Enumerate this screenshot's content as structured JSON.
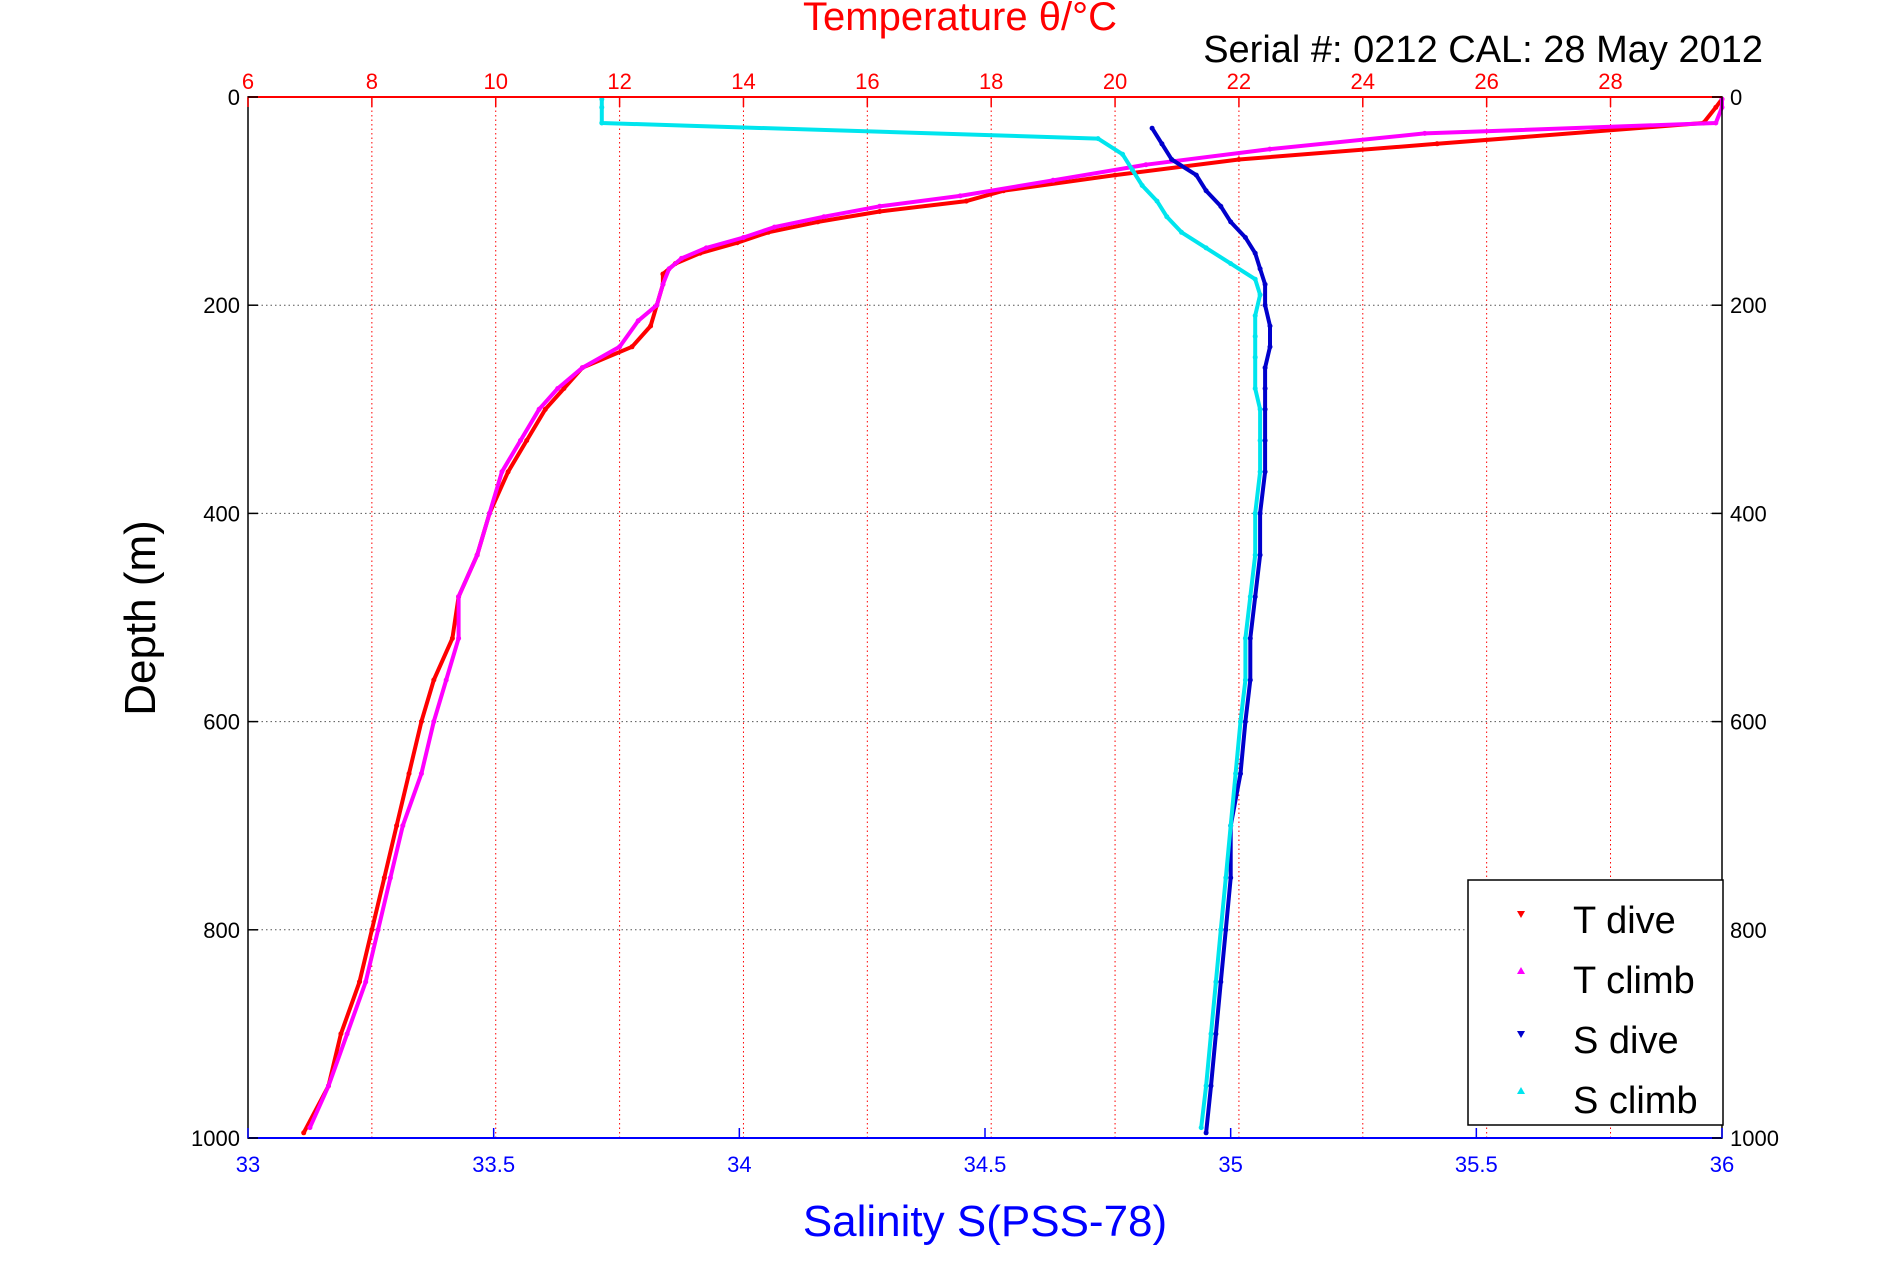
{
  "chart_data": {
    "type": "scatter",
    "title": "Temperature θ/°C",
    "subtitle": "Serial #: 0212  CAL: 28 May 2012",
    "xlabel": "Salinity S(PSS-78)",
    "ylabel": "Depth (m)",
    "colors": {
      "temperature_axis": "#ff0000",
      "salinity_axis": "#0000ff",
      "grid_temperature": "#ff0000",
      "grid_depth": "#555555",
      "legend_text": "#000000"
    },
    "temperature_axis": {
      "range": [
        6,
        29.8
      ],
      "ticks": [
        "6",
        "8",
        "10",
        "12",
        "14",
        "16",
        "18",
        "20",
        "22",
        "24",
        "26",
        "28"
      ],
      "tick_values": [
        6,
        8,
        10,
        12,
        14,
        16,
        18,
        20,
        22,
        24,
        26,
        28
      ],
      "position": "top"
    },
    "salinity_axis": {
      "range": [
        33,
        36
      ],
      "ticks": [
        "33",
        "33.5",
        "34",
        "34.5",
        "35",
        "35.5",
        "36"
      ],
      "tick_values": [
        33,
        33.5,
        34,
        34.5,
        35,
        35.5,
        36
      ],
      "position": "bottom"
    },
    "depth_axis": {
      "range": [
        0,
        1000
      ],
      "reversed": true,
      "ticks": [
        "0",
        "200",
        "400",
        "600",
        "800",
        "1000"
      ],
      "tick_values": [
        0,
        200,
        400,
        600,
        800,
        1000
      ]
    },
    "grid": true,
    "legend": {
      "placement": "bottom-right",
      "entries": [
        {
          "label": "T dive",
          "color": "#ff0000",
          "marker": "triangle-down"
        },
        {
          "label": "T climb",
          "color": "#ff00ff",
          "marker": "triangle-up"
        },
        {
          "label": "S dive",
          "color": "#0000cc",
          "marker": "triangle-down"
        },
        {
          "label": "S climb",
          "color": "#00e5ee",
          "marker": "triangle-up"
        }
      ]
    },
    "series": [
      {
        "name": "T dive",
        "axis": "temperature",
        "color": "#ff0000",
        "depth": [
          2,
          10,
          25,
          45,
          60,
          75,
          90,
          100,
          110,
          120,
          130,
          140,
          150,
          160,
          170,
          180,
          200,
          220,
          240,
          260,
          280,
          300,
          330,
          360,
          400,
          440,
          480,
          520,
          560,
          600,
          650,
          700,
          750,
          800,
          850,
          900,
          950,
          995
        ],
        "values": [
          29.8,
          29.7,
          29.5,
          25.2,
          22.0,
          20.0,
          18.2,
          17.6,
          16.2,
          15.2,
          14.4,
          13.9,
          13.3,
          12.9,
          12.7,
          12.7,
          12.6,
          12.5,
          12.2,
          11.4,
          11.1,
          10.8,
          10.5,
          10.2,
          9.9,
          9.7,
          9.4,
          9.3,
          9.0,
          8.8,
          8.6,
          8.4,
          8.2,
          8.0,
          7.8,
          7.5,
          7.3,
          6.9
        ]
      },
      {
        "name": "T climb",
        "axis": "temperature",
        "color": "#ff00ff",
        "depth": [
          2,
          10,
          25,
          35,
          50,
          65,
          80,
          95,
          105,
          115,
          125,
          135,
          145,
          155,
          165,
          180,
          200,
          215,
          240,
          260,
          280,
          300,
          330,
          360,
          400,
          440,
          480,
          520,
          560,
          600,
          650,
          700,
          750,
          800,
          850,
          900,
          950,
          990
        ],
        "values": [
          29.8,
          29.8,
          29.7,
          25.0,
          22.5,
          20.5,
          19.0,
          17.5,
          16.2,
          15.3,
          14.5,
          14.0,
          13.4,
          13.0,
          12.8,
          12.7,
          12.6,
          12.3,
          12.0,
          11.4,
          11.0,
          10.7,
          10.4,
          10.1,
          9.9,
          9.7,
          9.4,
          9.4,
          9.2,
          9.0,
          8.8,
          8.5,
          8.3,
          8.1,
          7.9,
          7.6,
          7.3,
          7.0
        ]
      },
      {
        "name": "S dive",
        "axis": "salinity",
        "color": "#0000cc",
        "depth": [
          30,
          45,
          60,
          75,
          90,
          105,
          120,
          135,
          150,
          165,
          180,
          200,
          220,
          240,
          260,
          280,
          300,
          330,
          360,
          400,
          440,
          480,
          520,
          560,
          600,
          650,
          700,
          750,
          800,
          850,
          900,
          950,
          995
        ],
        "values": [
          34.84,
          34.86,
          34.88,
          34.93,
          34.95,
          34.98,
          35.0,
          35.03,
          35.05,
          35.06,
          35.07,
          35.07,
          35.08,
          35.08,
          35.07,
          35.07,
          35.07,
          35.07,
          35.07,
          35.06,
          35.06,
          35.05,
          35.04,
          35.04,
          35.03,
          35.02,
          35.0,
          35.0,
          34.99,
          34.98,
          34.97,
          34.96,
          34.95
        ]
      },
      {
        "name": "S climb",
        "axis": "salinity",
        "color": "#00e5ee",
        "depth": [
          2,
          10,
          25,
          40,
          55,
          70,
          85,
          100,
          115,
          130,
          145,
          160,
          175,
          190,
          210,
          230,
          250,
          280,
          300,
          330,
          360,
          400,
          440,
          480,
          520,
          560,
          600,
          650,
          700,
          750,
          800,
          850,
          900,
          950,
          990
        ],
        "values": [
          33.72,
          33.72,
          33.72,
          34.73,
          34.78,
          34.8,
          34.82,
          34.85,
          34.87,
          34.9,
          34.95,
          35.0,
          35.05,
          35.06,
          35.05,
          35.05,
          35.05,
          35.05,
          35.06,
          35.06,
          35.06,
          35.05,
          35.05,
          35.04,
          35.03,
          35.03,
          35.02,
          35.01,
          35.0,
          34.99,
          34.98,
          34.97,
          34.96,
          34.95,
          34.94
        ]
      }
    ]
  }
}
